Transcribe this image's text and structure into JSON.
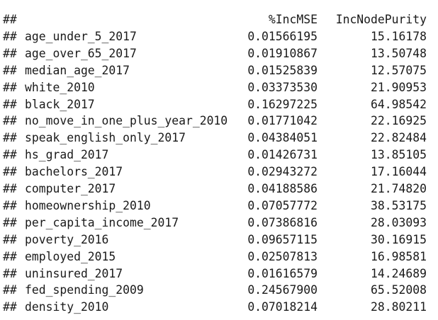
{
  "output": {
    "prefix": "##",
    "header": {
      "col1": "%IncMSE",
      "col2": "IncNodePurity"
    },
    "rows": [
      {
        "name": "age_under_5_2017",
        "inc_mse": "0.01566195",
        "inc_node_purity": "15.16178"
      },
      {
        "name": "age_over_65_2017",
        "inc_mse": "0.01910867",
        "inc_node_purity": "13.50748"
      },
      {
        "name": "median_age_2017",
        "inc_mse": "0.01525839",
        "inc_node_purity": "12.57075"
      },
      {
        "name": "white_2010",
        "inc_mse": "0.03373530",
        "inc_node_purity": "21.90953"
      },
      {
        "name": "black_2017",
        "inc_mse": "0.16297225",
        "inc_node_purity": "64.98542"
      },
      {
        "name": "no_move_in_one_plus_year_2010",
        "inc_mse": "0.01771042",
        "inc_node_purity": "22.16925"
      },
      {
        "name": "speak_english_only_2017",
        "inc_mse": "0.04384051",
        "inc_node_purity": "22.82484"
      },
      {
        "name": "hs_grad_2017",
        "inc_mse": "0.01426731",
        "inc_node_purity": "13.85105"
      },
      {
        "name": "bachelors_2017",
        "inc_mse": "0.02943272",
        "inc_node_purity": "17.16044"
      },
      {
        "name": "computer_2017",
        "inc_mse": "0.04188586",
        "inc_node_purity": "21.74820"
      },
      {
        "name": "homeownership_2010",
        "inc_mse": "0.07057772",
        "inc_node_purity": "38.53175"
      },
      {
        "name": "per_capita_income_2017",
        "inc_mse": "0.07386816",
        "inc_node_purity": "28.03093"
      },
      {
        "name": "poverty_2016",
        "inc_mse": "0.09657115",
        "inc_node_purity": "30.16915"
      },
      {
        "name": "employed_2015",
        "inc_mse": "0.02507813",
        "inc_node_purity": "16.98581"
      },
      {
        "name": "uninsured_2017",
        "inc_mse": "0.01616579",
        "inc_node_purity": "14.24689"
      },
      {
        "name": "fed_spending_2009",
        "inc_mse": "0.24567900",
        "inc_node_purity": "65.52008"
      },
      {
        "name": "density_2010",
        "inc_mse": "0.07018214",
        "inc_node_purity": "28.80211"
      }
    ]
  }
}
